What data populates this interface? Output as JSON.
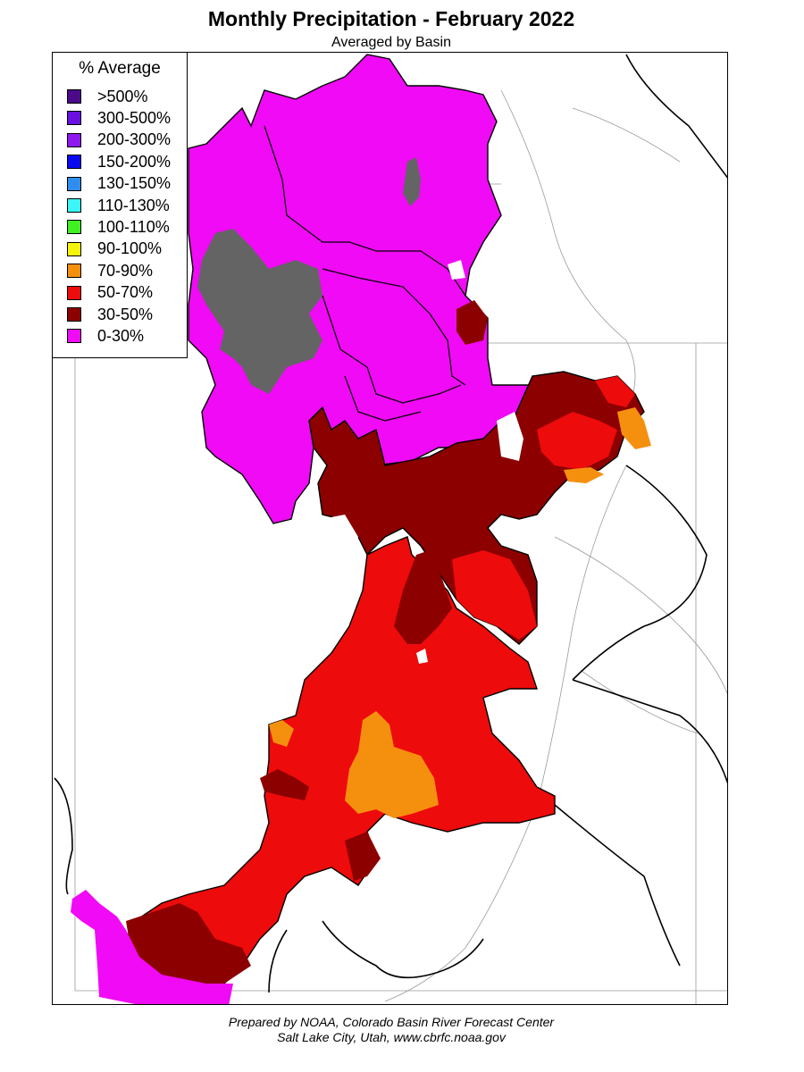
{
  "title": "Monthly Precipitation - February 2022",
  "subtitle": "Averaged by Basin",
  "legend": {
    "title": "% Average",
    "items": [
      {
        "label": ">500%",
        "color": "#4a0a8a"
      },
      {
        "label": "300-500%",
        "color": "#6a10e0"
      },
      {
        "label": "200-300%",
        "color": "#8f18f0"
      },
      {
        "label": "150-200%",
        "color": "#0a0af0"
      },
      {
        "label": "130-150%",
        "color": "#2e8ff0"
      },
      {
        "label": "110-130%",
        "color": "#3cf5f5"
      },
      {
        "label": "100-110%",
        "color": "#40f020"
      },
      {
        "label": "90-100%",
        "color": "#f5f50a"
      },
      {
        "label": "70-90%",
        "color": "#f5900f"
      },
      {
        "label": "50-70%",
        "color": "#ee0b0b"
      },
      {
        "label": "30-50%",
        "color": "#8c0000"
      },
      {
        "label": "0-30%",
        "color": "#f00af5"
      }
    ]
  },
  "map_colors": {
    "no_data": "#646464",
    "boundary": "#000000",
    "river": "#9a9a9a"
  },
  "footer": {
    "line1": "Prepared by NOAA, Colorado Basin River Forecast Center",
    "line2": "Salt Lake City, Utah, www.cbrfc.noaa.gov"
  }
}
